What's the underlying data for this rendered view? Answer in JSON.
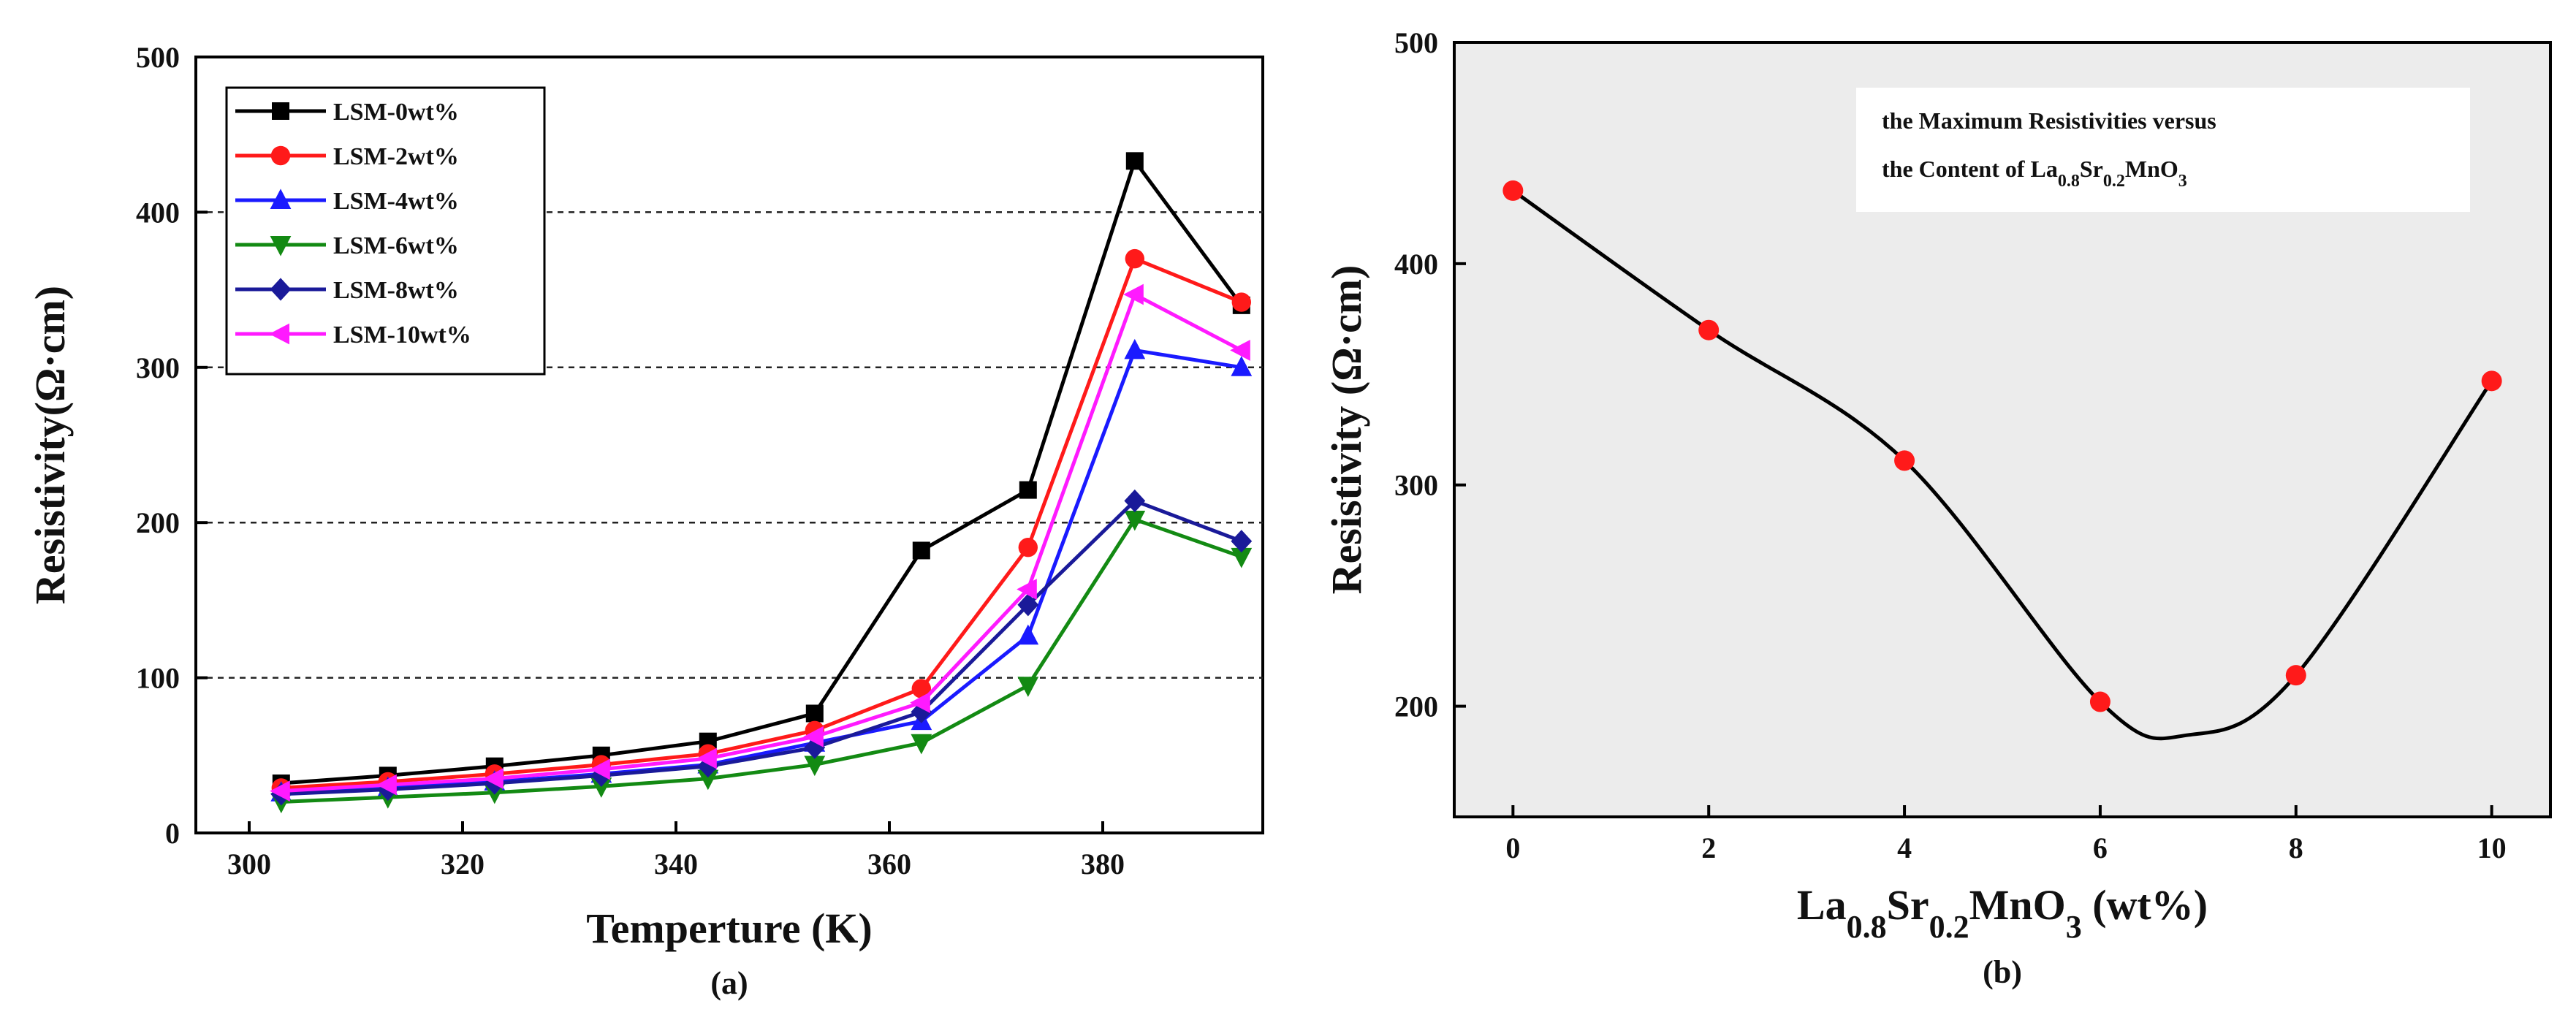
{
  "chart_data": [
    {
      "type": "line",
      "caption": "(a)",
      "xlabel": "Temperture (K)",
      "ylabel": "Resistivity(Ω·cm)",
      "xlim": [
        295,
        395
      ],
      "ylim": [
        0,
        500
      ],
      "xticks": [
        300,
        320,
        340,
        360,
        380
      ],
      "yticks": [
        0,
        100,
        200,
        300,
        400,
        500
      ],
      "grid_y": [
        100,
        200,
        300,
        400
      ],
      "legend_position": "top-left",
      "x": [
        303,
        313,
        323,
        333,
        343,
        353,
        363,
        373,
        383,
        393
      ],
      "series": [
        {
          "name": "LSM-0wt%",
          "color": "#000000",
          "marker": "square",
          "values": [
            32,
            37,
            43,
            50,
            59,
            77,
            182,
            221,
            433,
            340
          ]
        },
        {
          "name": "LSM-2wt%",
          "color": "#ff1a1a",
          "marker": "circle",
          "values": [
            29,
            33,
            38,
            44,
            51,
            66,
            93,
            184,
            370,
            342
          ]
        },
        {
          "name": "LSM-4wt%",
          "color": "#1a1aff",
          "marker": "triangle-up",
          "values": [
            26,
            29,
            33,
            38,
            44,
            58,
            72,
            127,
            311,
            300
          ]
        },
        {
          "name": "LSM-6wt%",
          "color": "#138a13",
          "marker": "triangle-down",
          "values": [
            20,
            23,
            26,
            30,
            35,
            44,
            58,
            95,
            202,
            178
          ]
        },
        {
          "name": "LSM-8wt%",
          "color": "#1a1a99",
          "marker": "diamond",
          "values": [
            25,
            28,
            32,
            37,
            43,
            55,
            78,
            147,
            214,
            188
          ]
        },
        {
          "name": "LSM-10wt%",
          "color": "#ff1aff",
          "marker": "triangle-left",
          "values": [
            27,
            31,
            35,
            41,
            48,
            62,
            84,
            157,
            347,
            311
          ]
        }
      ]
    },
    {
      "type": "scatter",
      "caption": "(b)",
      "xlabel": "La0.8Sr0.2MnO3 (wt%)",
      "ylabel": "Resistivity (Ω·cm)",
      "xlim": [
        -0.6,
        10.6
      ],
      "ylim": [
        150,
        500
      ],
      "xticks": [
        0,
        2,
        4,
        6,
        8,
        10
      ],
      "yticks": [
        200,
        300,
        400,
        500
      ],
      "background": "#ececec",
      "annotation": "the Maximum Resistivities versus  the Content of La0.8Sr0.2MnO3",
      "points": {
        "x": [
          0,
          2,
          4,
          6,
          8,
          10
        ],
        "y": [
          433,
          370,
          311,
          202,
          214,
          347
        ],
        "color": "#ff1a1a"
      },
      "fit_curve": {
        "color": "#000000",
        "style": "smooth spline",
        "x_min": 6.9,
        "y_min": 187
      }
    }
  ]
}
